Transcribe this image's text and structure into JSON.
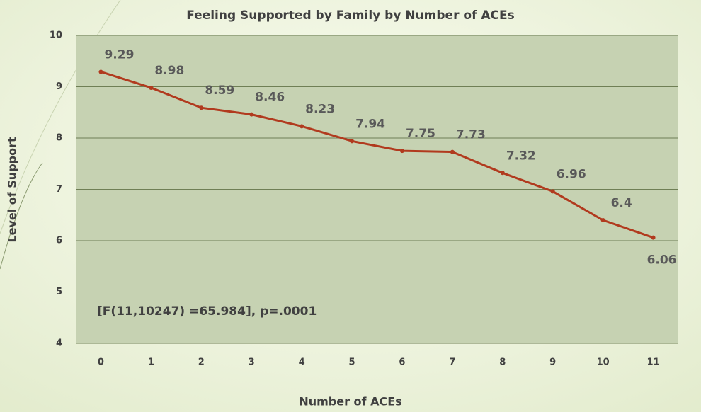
{
  "chart_data": {
    "type": "line",
    "title": "Feeling Supported by Family by Number of ACEs",
    "x_label": "Number of ACEs",
    "y_label": "Level of Support",
    "annotation": "[F(11,10247) =65.984], p=.0001",
    "categories": [
      "0",
      "1",
      "2",
      "3",
      "4",
      "5",
      "6",
      "7",
      "8",
      "9",
      "10",
      "11"
    ],
    "values": [
      9.29,
      8.98,
      8.59,
      8.46,
      8.23,
      7.94,
      7.75,
      7.73,
      7.32,
      6.96,
      6.4,
      6.06
    ],
    "color": "#b13a1e",
    "ylim": [
      4,
      10
    ],
    "yticks": [
      4,
      5,
      6,
      7,
      8,
      9,
      10
    ],
    "grid": true
  }
}
